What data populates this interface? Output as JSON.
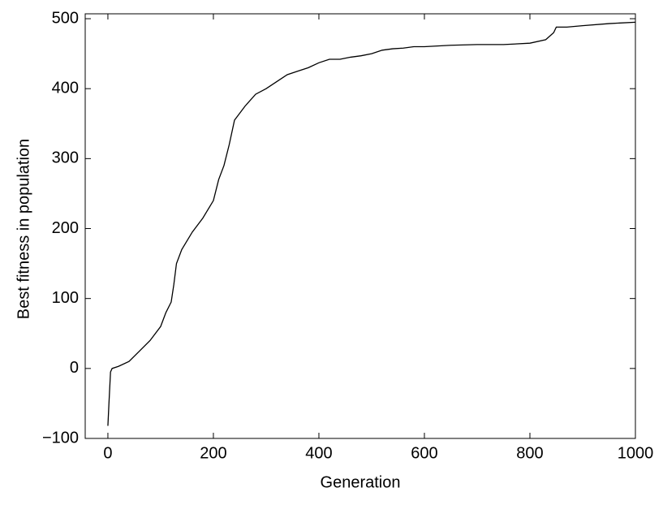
{
  "chart_data": {
    "type": "line",
    "x_label": "Generation",
    "y_label": "Best fitness in population",
    "x": [
      0,
      2,
      5,
      8,
      20,
      40,
      60,
      80,
      100,
      110,
      120,
      125,
      130,
      140,
      160,
      180,
      200,
      210,
      220,
      230,
      240,
      260,
      280,
      300,
      320,
      340,
      360,
      380,
      400,
      420,
      440,
      460,
      480,
      500,
      520,
      540,
      560,
      580,
      600,
      650,
      700,
      750,
      800,
      830,
      845,
      850,
      870,
      900,
      950,
      1000
    ],
    "series": [
      {
        "color": "#000000",
        "values": [
          -82,
          -50,
          -5,
          0,
          3,
          10,
          25,
          40,
          60,
          80,
          95,
          120,
          150,
          170,
          195,
          215,
          240,
          270,
          290,
          320,
          355,
          375,
          392,
          400,
          410,
          420,
          425,
          430,
          437,
          442,
          442,
          445,
          447,
          450,
          455,
          457,
          458,
          460,
          460,
          462,
          463,
          463,
          465,
          470,
          480,
          488,
          488,
          490,
          493,
          495
        ]
      }
    ],
    "xlim": [
      -43,
      1000
    ],
    "ylim": [
      -100,
      507
    ],
    "xticks": [
      0,
      200,
      400,
      600,
      800,
      1000
    ],
    "yticks": [
      {
        "value": -100,
        "label": "−100"
      },
      0,
      100,
      200,
      300,
      400,
      500
    ]
  }
}
